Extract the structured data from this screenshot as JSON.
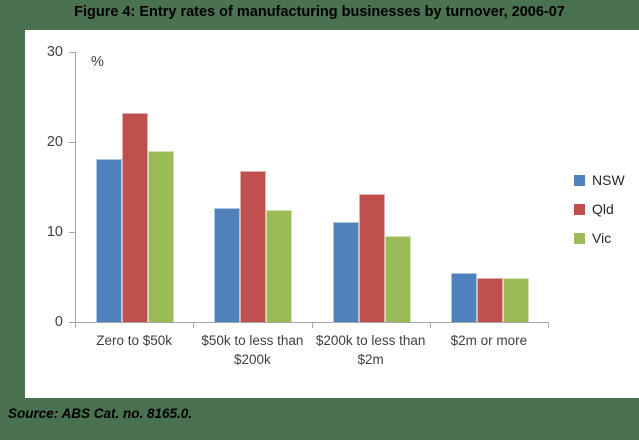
{
  "title": "Figure 4: Entry rates of manufacturing businesses by turnover, 2006-07",
  "source": "Source: ABS Cat. no. 8165.0.",
  "chart_data": {
    "type": "bar",
    "title": "Figure 4: Entry rates of manufacturing businesses by turnover, 2006-07",
    "unit_label": "%",
    "categories": [
      "Zero to $50k",
      "$50k to less than $200k",
      "$200k to less than $2m",
      "$2m or more"
    ],
    "series": [
      {
        "name": "NSW",
        "color": "#4f81bd",
        "values": [
          18.1,
          12.7,
          11.1,
          5.5
        ]
      },
      {
        "name": "Qld",
        "color": "#c0504d",
        "values": [
          23.2,
          16.8,
          14.2,
          4.9
        ]
      },
      {
        "name": "Vic",
        "color": "#9bbb59",
        "values": [
          19.0,
          12.4,
          9.6,
          4.9
        ]
      }
    ],
    "ylim": [
      0,
      30
    ],
    "yticks": [
      0,
      10,
      20,
      30
    ],
    "grid": false,
    "legend_position": "right",
    "plot_background": "#ffffff",
    "page_background": "#4a7150",
    "axis_color": "#a6a6a6"
  }
}
